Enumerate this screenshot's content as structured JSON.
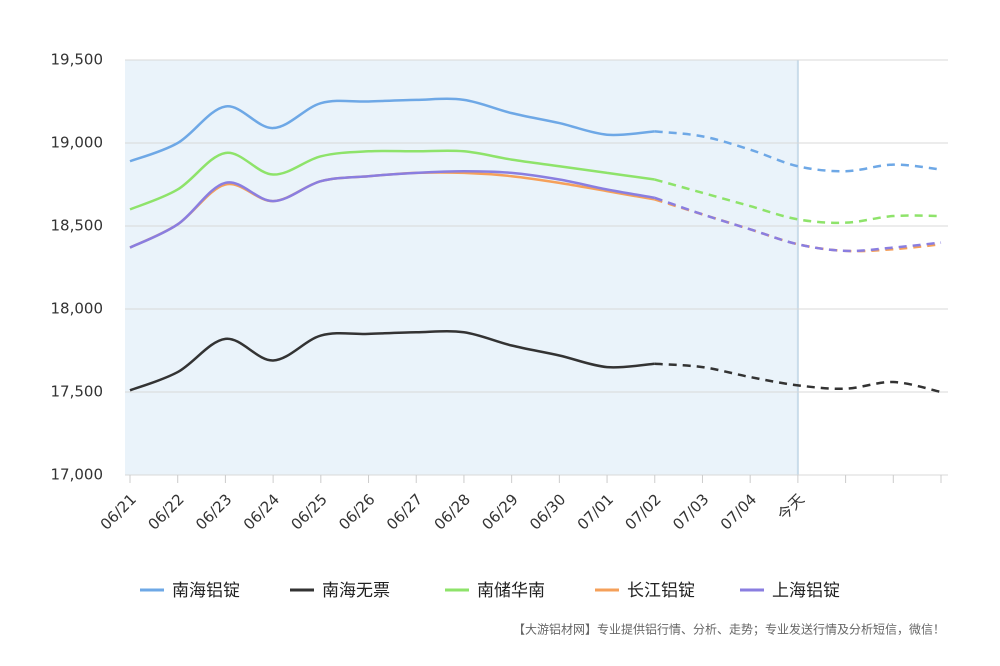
{
  "chart_data": {
    "type": "line",
    "categories": [
      "06/21",
      "06/22",
      "06/23",
      "06/24",
      "06/25",
      "06/26",
      "06/27",
      "06/28",
      "06/29",
      "06/30",
      "07/01",
      "07/02",
      "07/03",
      "07/04",
      "今天",
      null,
      null,
      null
    ],
    "series": [
      {
        "name": "南海铝锭",
        "color": "#6ea8e6",
        "values": [
          18890,
          19000,
          19220,
          19090,
          19240,
          19250,
          19260,
          19260,
          19180,
          19120,
          19050,
          19070,
          19040,
          18960,
          18860,
          18830,
          18870,
          18840
        ]
      },
      {
        "name": "南海无票",
        "color": "#333333",
        "values": [
          17510,
          17620,
          17820,
          17690,
          17840,
          17850,
          17860,
          17860,
          17780,
          17720,
          17650,
          17670,
          17650,
          17590,
          17540,
          17520,
          17560,
          17500
        ]
      },
      {
        "name": "南储华南",
        "color": "#8ee36a",
        "values": [
          18600,
          18720,
          18940,
          18810,
          18920,
          18950,
          18950,
          18950,
          18900,
          18860,
          18820,
          18780,
          18700,
          18620,
          18540,
          18520,
          18560,
          18560
        ]
      },
      {
        "name": "长江铝锭",
        "color": "#f5a05a",
        "values": [
          18370,
          18510,
          18750,
          18650,
          18770,
          18800,
          18820,
          18820,
          18800,
          18760,
          18710,
          18660,
          18570,
          18480,
          18390,
          18350,
          18360,
          18390
        ]
      },
      {
        "name": "上海铝锭",
        "color": "#8a7ee0",
        "values": [
          18370,
          18510,
          18760,
          18650,
          18770,
          18800,
          18820,
          18830,
          18820,
          18780,
          18720,
          18670,
          18570,
          18480,
          18390,
          18350,
          18370,
          18400
        ]
      }
    ],
    "ylim": [
      17000,
      19500
    ],
    "yticks": [
      {
        "value": 17000,
        "label": "17,000"
      },
      {
        "value": 17500,
        "label": "17,500"
      },
      {
        "value": 18000,
        "label": "18,000"
      },
      {
        "value": 18500,
        "label": "18,500"
      },
      {
        "value": 19000,
        "label": "19,000"
      },
      {
        "value": 19500,
        "label": "19,500"
      }
    ],
    "grid": true,
    "dashed_from": 11,
    "highlight_until": 14,
    "legend": "bottom",
    "note": "【大游铝材网】专业提供铝行情、分析、走势；专业发送行情及分析短信，微信！"
  }
}
